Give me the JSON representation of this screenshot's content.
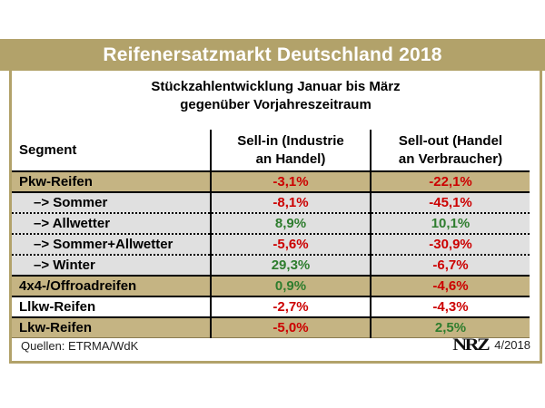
{
  "title_bar": {
    "title": "Reifenersatzmarkt Deutschland 2018"
  },
  "subtitle": {
    "text": "Stückzahlentwicklung Januar bis März\ngegenüber Vorjahreszeitraum"
  },
  "table": {
    "header": {
      "segment": "Segment",
      "sell_in": "Sell-in (Industrie\nan Handel)",
      "sell_out": "Sell-out (Handel\nan Verbraucher)"
    },
    "rows": [
      {
        "label": "Pkw-Reifen",
        "sell_in": "-3,1%",
        "sell_out": "-22,1%",
        "row_style": "gold",
        "sub": false
      },
      {
        "label": "–> Sommer",
        "sell_in": "-8,1%",
        "sell_out": "-45,1%",
        "row_style": "gray",
        "sub": true
      },
      {
        "label": "–> Allwetter",
        "sell_in": "8,9%",
        "sell_out": "10,1%",
        "row_style": "gray",
        "sub": true
      },
      {
        "label": "–> Sommer+Allwetter",
        "sell_in": "-5,6%",
        "sell_out": "-30,9%",
        "row_style": "gray",
        "sub": true
      },
      {
        "label": "–> Winter",
        "sell_in": "29,3%",
        "sell_out": "-6,7%",
        "row_style": "gray",
        "sub": true
      },
      {
        "label": "4x4-/Offroadreifen",
        "sell_in": "0,9%",
        "sell_out": "-4,6%",
        "row_style": "gold",
        "sub": false
      },
      {
        "label": "Llkw-Reifen",
        "sell_in": "-2,7%",
        "sell_out": "-4,3%",
        "row_style": "white",
        "sub": false
      },
      {
        "label": "Lkw-Reifen",
        "sell_in": "-5,0%",
        "sell_out": "2,5%",
        "row_style": "gold",
        "sub": false
      }
    ]
  },
  "footer": {
    "sources": "Quellen: ETRMA/WdK",
    "logo": "NRZ",
    "issue": "4/2018"
  },
  "colors": {
    "gold_bar": "#b2a26a",
    "gold_row": "#c5b483",
    "gray_row": "#e0e0e0",
    "negative_value": "#cc0000",
    "positive_value": "#2e7d2e",
    "title_text": "#ffffff"
  },
  "chart_data": {
    "type": "table",
    "title": "Reifenersatzmarkt Deutschland 2018",
    "subtitle": "Stückzahlentwicklung Januar bis März gegenüber Vorjahreszeitraum",
    "columns": [
      "Segment",
      "Sell-in (Industrie an Handel)",
      "Sell-out (Handel an Verbraucher)"
    ],
    "categories": [
      "Pkw-Reifen",
      "Sommer",
      "Allwetter",
      "Sommer+Allwetter",
      "Winter",
      "4x4-/Offroadreifen",
      "Llkw-Reifen",
      "Lkw-Reifen"
    ],
    "series": [
      {
        "name": "Sell-in (Industrie an Handel)",
        "values": [
          -3.1,
          -8.1,
          8.9,
          -5.6,
          29.3,
          0.9,
          -2.7,
          -5.0
        ]
      },
      {
        "name": "Sell-out (Handel an Verbraucher)",
        "values": [
          -22.1,
          -45.1,
          10.1,
          -30.9,
          -6.7,
          -4.6,
          -4.3,
          2.5
        ]
      }
    ],
    "value_unit": "% change vs. prior-year period (Jan–Mär)",
    "sources": "ETRMA/WdK",
    "issue": "4/2018"
  }
}
